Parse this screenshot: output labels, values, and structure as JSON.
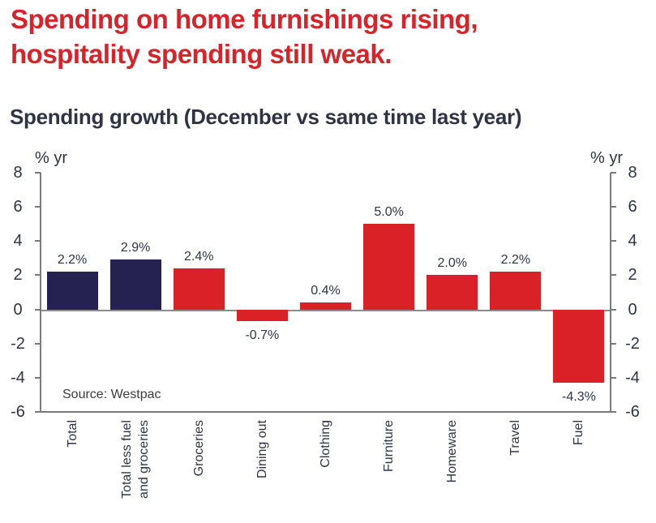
{
  "header": {
    "title": "Spending on home furnishings rising,\nhospitality spending still weak."
  },
  "chart_data": {
    "type": "bar",
    "title": "Spending growth (December vs same time last year)",
    "unit_label_left": "% yr",
    "unit_label_right": "% yr",
    "categories": [
      "Total",
      "Total less fuel\nand groceries",
      "Groceries",
      "Dining out",
      "Clothing",
      "Furniture",
      "Homeware",
      "Travel",
      "Fuel"
    ],
    "values": [
      2.2,
      2.9,
      2.4,
      -0.7,
      0.4,
      5.0,
      2.0,
      2.2,
      -4.3
    ],
    "value_labels": [
      "2.2%",
      "2.9%",
      "2.4%",
      "-0.7%",
      "0.4%",
      "5.0%",
      "2.0%",
      "2.2%",
      "-4.3%"
    ],
    "bar_colors": [
      "navy",
      "navy",
      "red",
      "red",
      "red",
      "red",
      "red",
      "red",
      "red"
    ],
    "ylim": [
      -6,
      8
    ],
    "yticks": [
      8,
      6,
      4,
      2,
      0,
      -2,
      -4,
      -6
    ],
    "grid": false,
    "legend": "none",
    "source": "Source: Westpac"
  },
  "colors": {
    "title_red": "#d7242b",
    "bar_red": "#da2127",
    "bar_navy": "#252150",
    "text_dark": "#2e3442",
    "axis_gray": "#7a7a7a",
    "zero_line_gray": "#8c8c8c",
    "source_text": "#3c3c3c"
  }
}
